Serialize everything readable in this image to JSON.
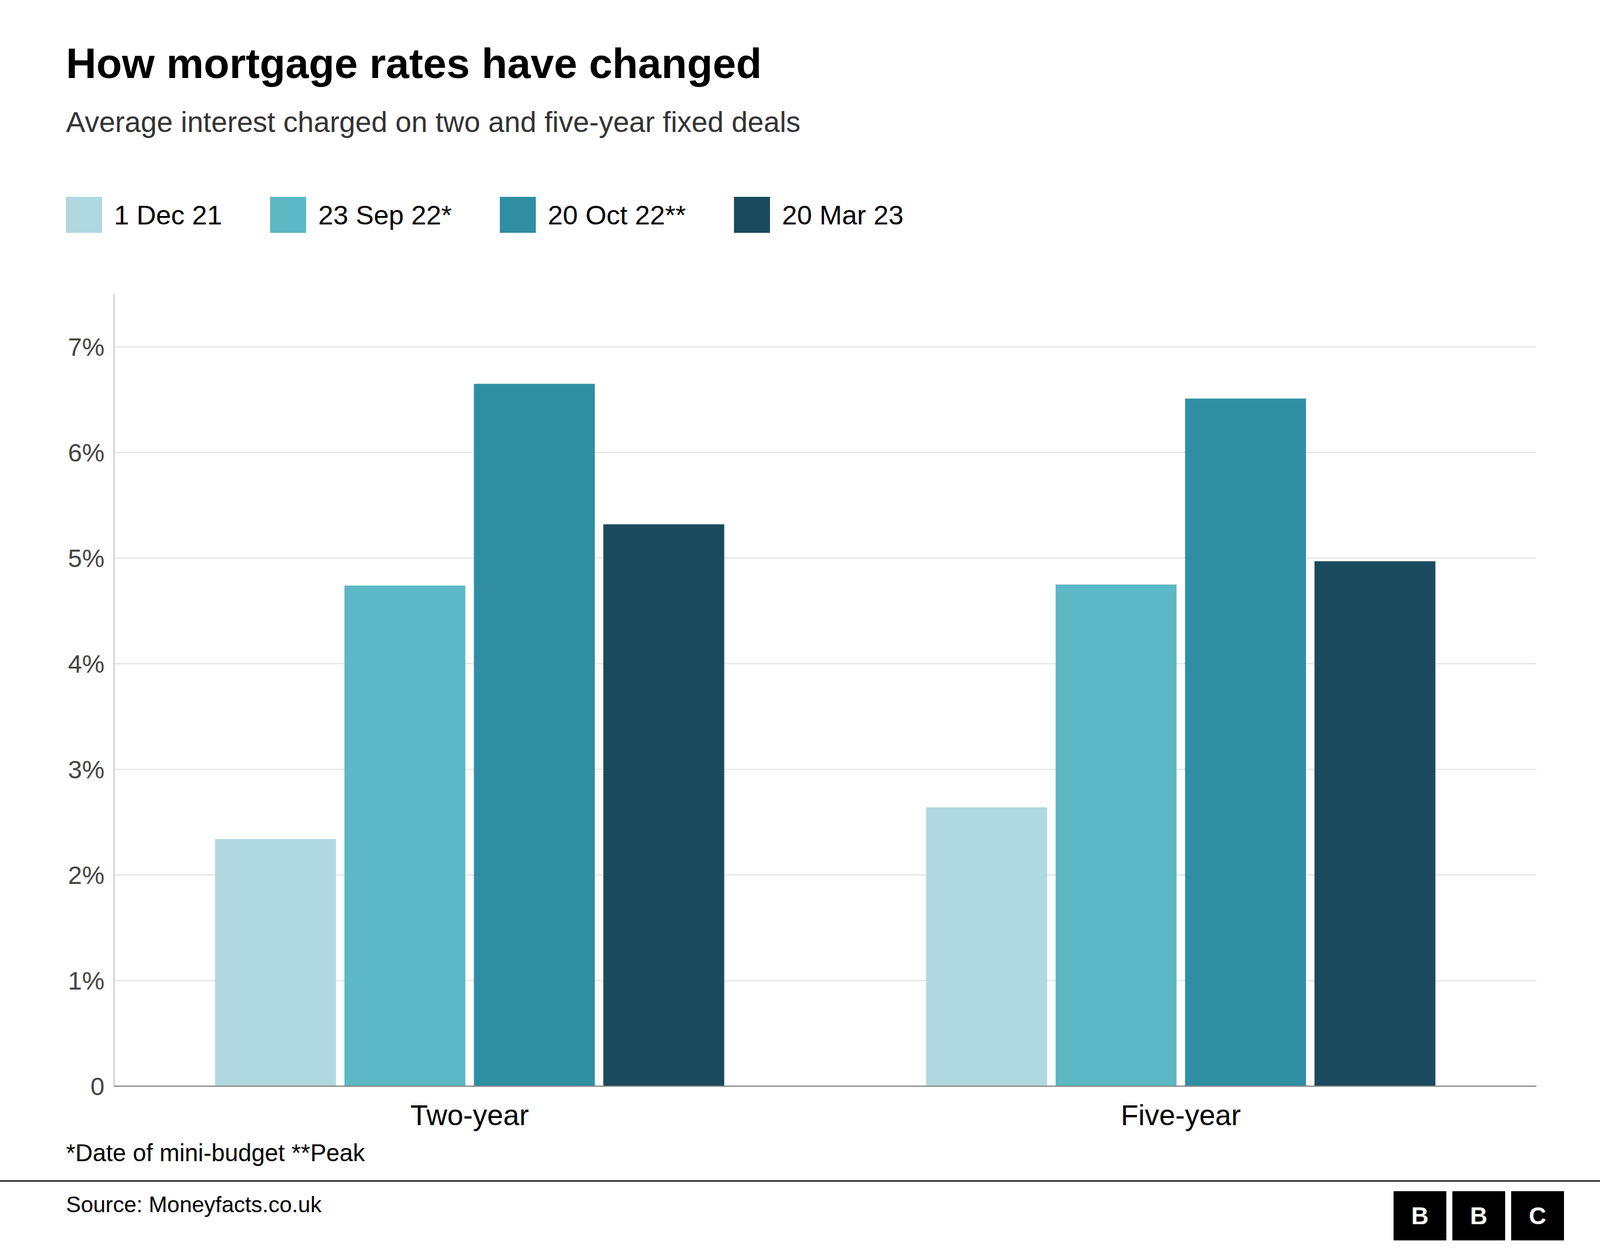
{
  "chart_data": {
    "type": "bar",
    "title": "How mortgage rates have changed",
    "subtitle": "Average interest charged on two and five-year fixed deals",
    "footnote": "*Date of mini-budget **Peak",
    "source": "Source: Moneyfacts.co.uk",
    "logo": "BBC",
    "categories": [
      "Two-year",
      "Five-year"
    ],
    "series": [
      {
        "name": "1 Dec 21",
        "color": "#b0d8e0",
        "values": [
          2.34,
          2.64
        ]
      },
      {
        "name": "23 Sep 22*",
        "color": "#5cb8c4",
        "values": [
          4.74,
          4.75
        ]
      },
      {
        "name": "20 Oct 22**",
        "color": "#2e8fa3",
        "values": [
          6.65,
          6.51
        ]
      },
      {
        "name": "20 Mar 23",
        "color": "#1a4a5e",
        "values": [
          5.32,
          4.97
        ]
      }
    ],
    "ylim": [
      0,
      7.5
    ],
    "yticks": [
      0,
      {
        "value": 1,
        "label": "1%"
      },
      {
        "value": 2,
        "label": "2%"
      },
      {
        "value": 3,
        "label": "3%"
      },
      {
        "value": 4,
        "label": "4%"
      },
      {
        "value": 5,
        "label": "5%"
      },
      {
        "value": 6,
        "label": "6%"
      },
      {
        "value": 7,
        "label": "7%"
      }
    ],
    "grid": true,
    "legend": "top-left"
  }
}
